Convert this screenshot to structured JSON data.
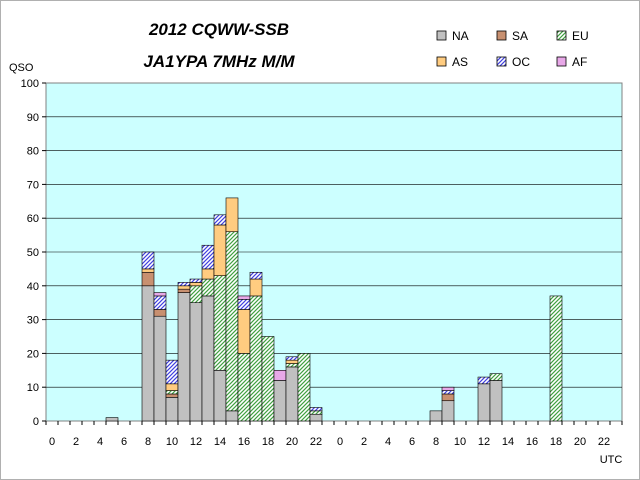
{
  "chart_data": {
    "type": "bar",
    "stacked": true,
    "title": "2012 CQWW-SSB",
    "subtitle": "JA1YPA  7MHz  M/M",
    "ylabel": "QSO",
    "xlabel": "UTC",
    "ylim": [
      0,
      100
    ],
    "yticks": [
      0,
      10,
      20,
      30,
      40,
      50,
      60,
      70,
      80,
      90,
      100
    ],
    "grid": true,
    "legend_position": "top-right",
    "categories": [
      0,
      1,
      2,
      3,
      4,
      5,
      6,
      7,
      8,
      9,
      10,
      11,
      12,
      13,
      14,
      15,
      16,
      17,
      18,
      19,
      20,
      21,
      22,
      23,
      0,
      1,
      2,
      3,
      4,
      5,
      6,
      7,
      8,
      9,
      10,
      11,
      12,
      13,
      14,
      15,
      16,
      17,
      18,
      19,
      20,
      21,
      22,
      23
    ],
    "tick_labels": [
      "0",
      "",
      "2",
      "",
      "4",
      "",
      "6",
      "",
      "8",
      "",
      "10",
      "",
      "12",
      "",
      "14",
      "",
      "16",
      "",
      "18",
      "",
      "20",
      "",
      "22",
      "",
      "0",
      "",
      "2",
      "",
      "4",
      "",
      "6",
      "",
      "8",
      "",
      "10",
      "",
      "12",
      "",
      "14",
      "",
      "16",
      "",
      "18",
      "",
      "20",
      "",
      "22",
      ""
    ],
    "series": [
      {
        "name": "NA",
        "color": "#c0c0c0",
        "pattern": "solid",
        "values": [
          0,
          0,
          0,
          0,
          0,
          1,
          0,
          0,
          40,
          31,
          7,
          38,
          35,
          37,
          15,
          3,
          0,
          0,
          0,
          12,
          16,
          0,
          2,
          0,
          0,
          0,
          0,
          0,
          0,
          0,
          0,
          0,
          3,
          6,
          0,
          0,
          11,
          12,
          0,
          0,
          0,
          0,
          0,
          0,
          0,
          0,
          0,
          0
        ]
      },
      {
        "name": "SA",
        "color": "#c89070",
        "pattern": "solid",
        "values": [
          0,
          0,
          0,
          0,
          0,
          0,
          0,
          0,
          4,
          2,
          1,
          1,
          0,
          0,
          0,
          0,
          0,
          0,
          0,
          0,
          0,
          0,
          0,
          0,
          0,
          0,
          0,
          0,
          0,
          0,
          0,
          0,
          0,
          2,
          0,
          0,
          0,
          0,
          0,
          0,
          0,
          0,
          0,
          0,
          0,
          0,
          0,
          0
        ]
      },
      {
        "name": "EU",
        "color": "#78c878",
        "pattern": "hatch",
        "values": [
          0,
          0,
          0,
          0,
          0,
          0,
          0,
          0,
          0,
          0,
          1,
          0,
          5,
          5,
          28,
          53,
          20,
          37,
          25,
          0,
          1,
          20,
          1,
          0,
          0,
          0,
          0,
          0,
          0,
          0,
          0,
          0,
          0,
          0,
          0,
          0,
          0,
          2,
          0,
          0,
          0,
          0,
          37,
          0,
          0,
          0,
          0,
          0
        ]
      },
      {
        "name": "AS",
        "color": "#ffcc80",
        "pattern": "solid",
        "values": [
          0,
          0,
          0,
          0,
          0,
          0,
          0,
          0,
          1,
          0,
          2,
          1,
          1,
          3,
          15,
          10,
          13,
          5,
          0,
          0,
          1,
          0,
          0,
          0,
          0,
          0,
          0,
          0,
          0,
          0,
          0,
          0,
          0,
          0,
          0,
          0,
          0,
          0,
          0,
          0,
          0,
          0,
          0,
          0,
          0,
          0,
          0,
          0
        ]
      },
      {
        "name": "OC",
        "color": "#8080f0",
        "pattern": "hatch",
        "values": [
          0,
          0,
          0,
          0,
          0,
          0,
          0,
          0,
          5,
          4,
          7,
          1,
          1,
          7,
          3,
          0,
          3,
          2,
          0,
          0,
          1,
          0,
          1,
          0,
          0,
          0,
          0,
          0,
          0,
          0,
          0,
          0,
          0,
          1,
          0,
          0,
          2,
          0,
          0,
          0,
          0,
          0,
          0,
          0,
          0,
          0,
          0,
          0
        ]
      },
      {
        "name": "AF",
        "color": "#e8a8e8",
        "pattern": "solid",
        "values": [
          0,
          0,
          0,
          0,
          0,
          0,
          0,
          0,
          0,
          1,
          0,
          0,
          0,
          0,
          0,
          0,
          1,
          0,
          0,
          3,
          0,
          0,
          0,
          0,
          0,
          0,
          0,
          0,
          0,
          0,
          0,
          0,
          0,
          1,
          0,
          0,
          0,
          0,
          0,
          0,
          0,
          0,
          0,
          0,
          0,
          0,
          0,
          0
        ]
      }
    ],
    "legend_order": [
      "NA",
      "SA",
      "EU",
      "AS",
      "OC",
      "AF"
    ]
  }
}
